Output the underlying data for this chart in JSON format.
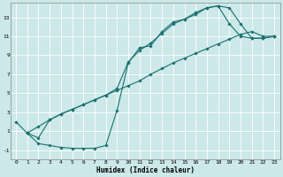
{
  "title": "",
  "xlabel": "Humidex (Indice chaleur)",
  "bg_color": "#cce8e8",
  "grid_color": "#ffffff",
  "line_color": "#1a7070",
  "xlim": [
    -0.5,
    23.5
  ],
  "ylim": [
    -2.0,
    14.5
  ],
  "xticks": [
    0,
    1,
    2,
    3,
    4,
    5,
    6,
    7,
    8,
    9,
    10,
    11,
    12,
    13,
    14,
    15,
    16,
    17,
    18,
    19,
    20,
    21,
    22,
    23
  ],
  "yticks": [
    -1,
    1,
    3,
    5,
    7,
    9,
    11,
    13
  ],
  "line1_x": [
    0,
    1,
    2,
    3,
    4,
    5,
    6,
    7,
    8,
    9,
    10,
    11,
    12,
    13,
    14,
    15,
    16,
    17,
    18,
    19,
    20,
    21,
    22,
    23
  ],
  "line1_y": [
    2.0,
    0.8,
    -0.3,
    -0.5,
    -0.7,
    -0.8,
    -0.8,
    -0.8,
    -0.5,
    3.2,
    8.2,
    9.8,
    10.0,
    11.5,
    12.5,
    12.8,
    13.5,
    14.0,
    14.2,
    12.3,
    11.0,
    10.8,
    10.8,
    11.0
  ],
  "line2_x": [
    1,
    2,
    3,
    4,
    5,
    6,
    7,
    8,
    9,
    10,
    11,
    12,
    13,
    14,
    15,
    16,
    17,
    18,
    19,
    20,
    21,
    22,
    23
  ],
  "line2_y": [
    0.8,
    1.5,
    2.2,
    2.8,
    3.3,
    3.8,
    4.3,
    4.8,
    5.3,
    5.8,
    6.3,
    7.0,
    7.6,
    8.2,
    8.7,
    9.2,
    9.7,
    10.2,
    10.7,
    11.2,
    11.5,
    11.0,
    11.0
  ],
  "line3_x": [
    1,
    2,
    3,
    4,
    5,
    6,
    7,
    8,
    9,
    10,
    11,
    12,
    13,
    14,
    15,
    16,
    17,
    18,
    19,
    20,
    21,
    22,
    23
  ],
  "line3_y": [
    0.8,
    0.3,
    2.2,
    2.8,
    3.3,
    3.8,
    4.3,
    4.8,
    5.5,
    8.3,
    9.5,
    10.3,
    11.3,
    12.3,
    12.8,
    13.3,
    14.0,
    14.2,
    14.0,
    12.3,
    10.8,
    10.8,
    11.0
  ]
}
